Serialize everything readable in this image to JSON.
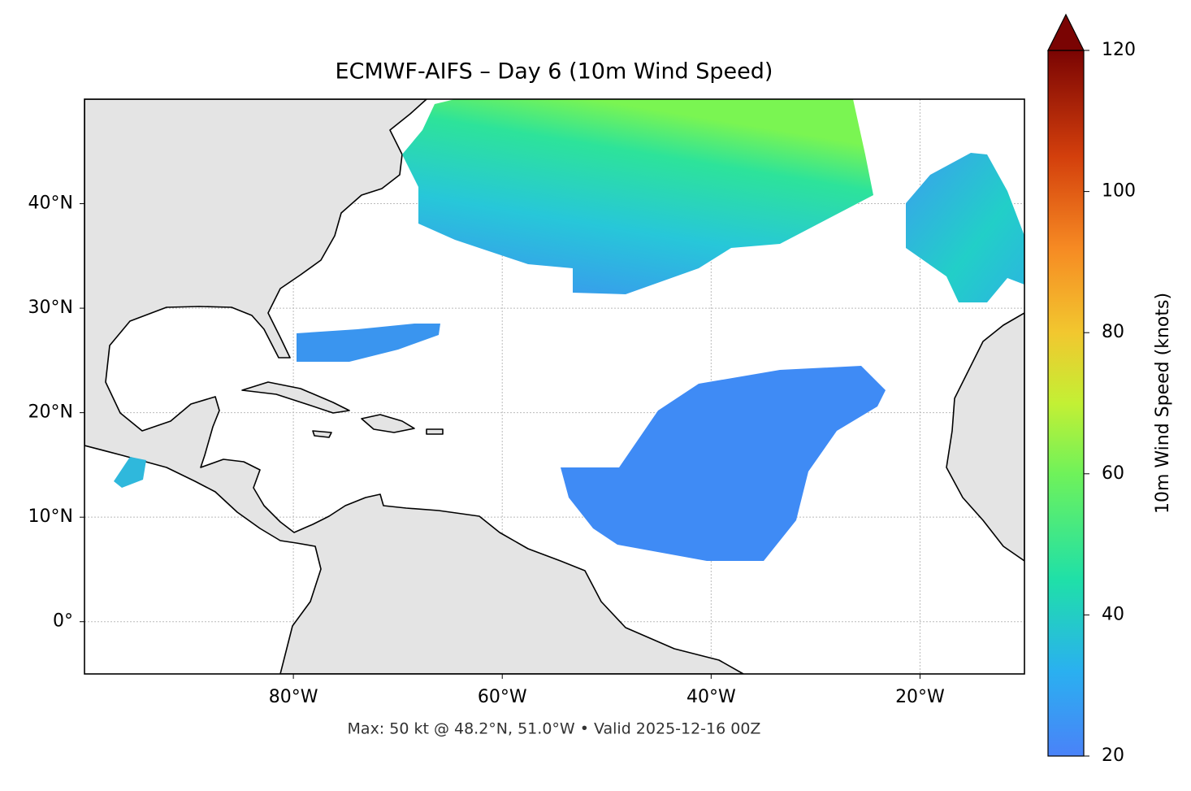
{
  "chart_data": {
    "type": "map",
    "title": "ECMWF-AIFS – Day 6 (10m Wind Speed)",
    "subtitle": "Max: 50 kt @ 48.2°N, 51.0°W • Valid 2025-12-16 00Z",
    "xlim": [
      -100,
      -10
    ],
    "ylim": [
      -5,
      50
    ],
    "xticks": [
      {
        "value": -80,
        "label": "80°W"
      },
      {
        "value": -60,
        "label": "60°W"
      },
      {
        "value": -40,
        "label": "40°W"
      },
      {
        "value": -20,
        "label": "20°W"
      }
    ],
    "yticks": [
      {
        "value": 0,
        "label": "0°"
      },
      {
        "value": 10,
        "label": "10°N"
      },
      {
        "value": 20,
        "label": "20°N"
      },
      {
        "value": 30,
        "label": "30°N"
      },
      {
        "value": 40,
        "label": "40°N"
      }
    ],
    "grid": true,
    "colorbar": {
      "label": "10m Wind Speed (knots)",
      "lim": [
        20,
        120
      ],
      "ticks": [
        20,
        40,
        60,
        80,
        100,
        120
      ]
    }
  }
}
